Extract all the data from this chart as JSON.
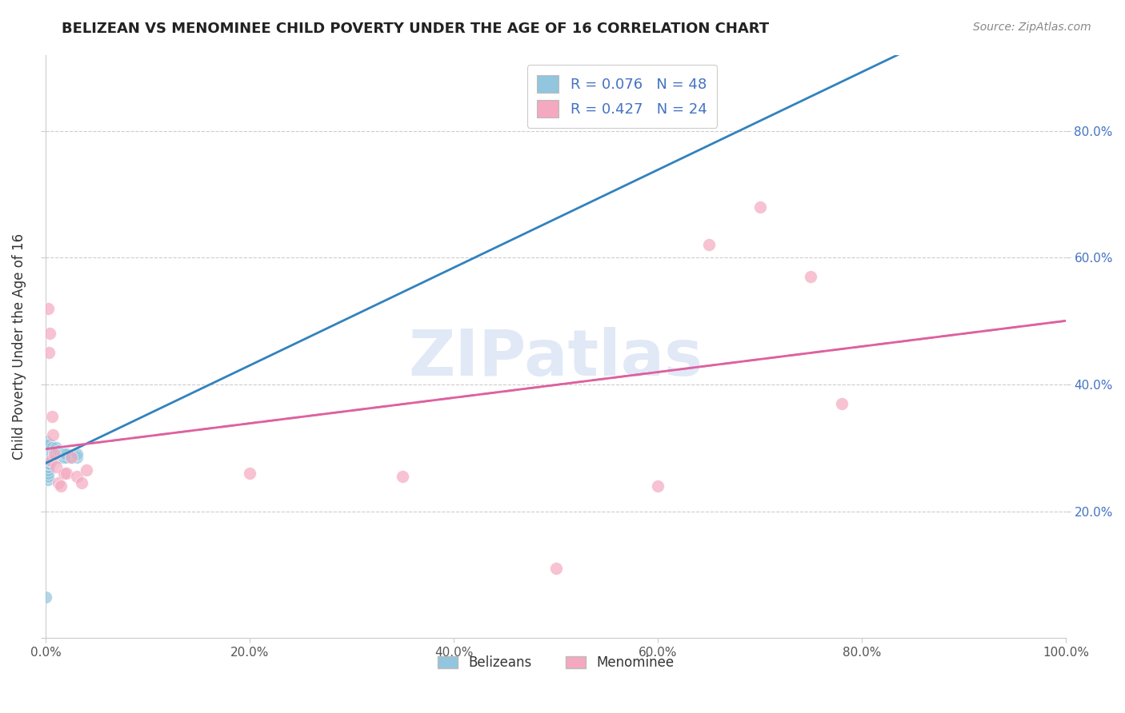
{
  "title": "BELIZEAN VS MENOMINEE CHILD POVERTY UNDER THE AGE OF 16 CORRELATION CHART",
  "source": "Source: ZipAtlas.com",
  "ylabel": "Child Poverty Under the Age of 16",
  "xlim": [
    0.0,
    1.0
  ],
  "ylim": [
    0.0,
    0.92
  ],
  "xticks": [
    0.0,
    0.2,
    0.4,
    0.6,
    0.8,
    1.0
  ],
  "xticklabels": [
    "0.0%",
    "20.0%",
    "40.0%",
    "60.0%",
    "80.0%",
    "100.0%"
  ],
  "yticks_left": [
    0.0,
    0.2,
    0.4,
    0.6,
    0.8
  ],
  "yticks_right": [
    0.2,
    0.4,
    0.6,
    0.8
  ],
  "yticklabels_right": [
    "20.0%",
    "40.0%",
    "60.0%",
    "80.0%"
  ],
  "belizean_color": "#92c5de",
  "menominee_color": "#f4a9c0",
  "belizean_line_color": "#3182bd",
  "menominee_line_color": "#e05fa0",
  "dashed_line_color": "#aaaaaa",
  "R_belizean": 0.076,
  "N_belizean": 48,
  "R_menominee": 0.427,
  "N_menominee": 24,
  "watermark": "ZIPatlas",
  "legend_label_1": "Belizeans",
  "legend_label_2": "Menominee",
  "belizean_x": [
    0.0,
    0.0,
    0.0,
    0.0,
    0.0,
    0.0,
    0.0,
    0.002,
    0.002,
    0.002,
    0.002,
    0.002,
    0.002,
    0.002,
    0.002,
    0.004,
    0.004,
    0.004,
    0.004,
    0.004,
    0.004,
    0.004,
    0.006,
    0.006,
    0.006,
    0.006,
    0.008,
    0.008,
    0.008,
    0.01,
    0.01,
    0.01,
    0.01,
    0.012,
    0.012,
    0.012,
    0.014,
    0.014,
    0.016,
    0.016,
    0.018,
    0.018,
    0.02,
    0.02,
    0.025,
    0.03,
    0.03,
    0.0
  ],
  "belizean_y": [
    0.28,
    0.285,
    0.29,
    0.295,
    0.3,
    0.305,
    0.31,
    0.25,
    0.255,
    0.26,
    0.265,
    0.27,
    0.275,
    0.28,
    0.285,
    0.275,
    0.28,
    0.285,
    0.29,
    0.295,
    0.3,
    0.305,
    0.285,
    0.29,
    0.295,
    0.3,
    0.285,
    0.29,
    0.295,
    0.285,
    0.29,
    0.295,
    0.3,
    0.285,
    0.29,
    0.295,
    0.285,
    0.29,
    0.285,
    0.29,
    0.285,
    0.29,
    0.285,
    0.29,
    0.285,
    0.285,
    0.29,
    0.065
  ],
  "menominee_x": [
    0.002,
    0.003,
    0.004,
    0.005,
    0.006,
    0.007,
    0.008,
    0.01,
    0.012,
    0.015,
    0.018,
    0.02,
    0.025,
    0.03,
    0.035,
    0.04,
    0.5,
    0.6,
    0.65,
    0.7,
    0.75,
    0.78,
    0.2,
    0.35
  ],
  "menominee_y": [
    0.52,
    0.45,
    0.48,
    0.28,
    0.35,
    0.32,
    0.29,
    0.27,
    0.245,
    0.24,
    0.26,
    0.26,
    0.285,
    0.255,
    0.245,
    0.265,
    0.11,
    0.24,
    0.62,
    0.68,
    0.57,
    0.37,
    0.26,
    0.255
  ]
}
